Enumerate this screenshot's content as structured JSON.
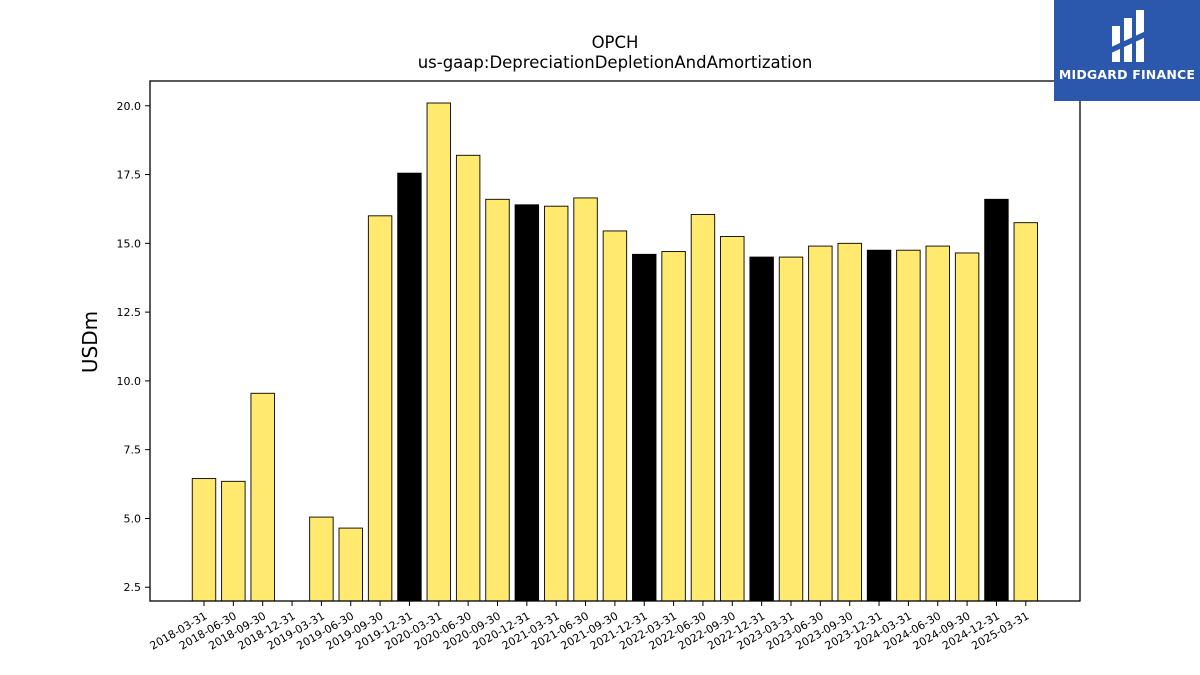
{
  "chart_data": {
    "type": "bar",
    "title": "OPCH",
    "subtitle": "us-gaap:DepreciationDepletionAndAmortization",
    "ylabel": "USDm",
    "xlabel": "",
    "ylim": [
      2.0,
      20.9
    ],
    "yticks": [
      "2.5",
      "5.0",
      "7.5",
      "10.0",
      "12.5",
      "15.0",
      "17.5",
      "20.0"
    ],
    "grid": false,
    "colors": {
      "quarter": "#ffe96e",
      "year_end": "#000000",
      "edge": "#000000"
    },
    "categories": [
      "2018-03-31",
      "2018-06-30",
      "2018-09-30",
      "2018-12-31",
      "2019-03-31",
      "2019-06-30",
      "2019-09-30",
      "2019-12-31",
      "2020-03-31",
      "2020-06-30",
      "2020-09-30",
      "2020-12-31",
      "2021-03-31",
      "2021-06-30",
      "2021-09-30",
      "2021-12-31",
      "2022-03-31",
      "2022-06-30",
      "2022-09-30",
      "2022-12-31",
      "2023-03-31",
      "2023-06-30",
      "2023-09-30",
      "2023-12-31",
      "2024-03-31",
      "2024-06-30",
      "2024-09-30",
      "2024-12-31",
      "2025-03-31"
    ],
    "values": [
      6.45,
      6.35,
      9.55,
      null,
      5.05,
      4.65,
      16.0,
      17.55,
      20.1,
      18.2,
      16.6,
      16.4,
      16.35,
      16.65,
      15.45,
      14.6,
      14.7,
      16.05,
      15.25,
      14.5,
      14.5,
      14.9,
      15.0,
      14.75,
      14.75,
      14.9,
      14.65,
      16.6,
      15.75
    ],
    "year_end": [
      false,
      false,
      false,
      true,
      false,
      false,
      false,
      true,
      false,
      false,
      false,
      true,
      false,
      false,
      false,
      true,
      false,
      false,
      false,
      true,
      false,
      false,
      false,
      true,
      false,
      false,
      false,
      true,
      false
    ]
  },
  "logo": {
    "text": "MIDGARD FINANCE"
  }
}
